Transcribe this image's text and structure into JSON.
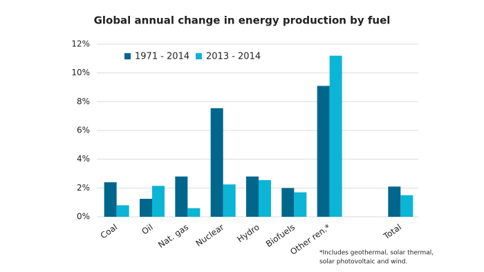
{
  "chart_data": {
    "type": "bar",
    "title": "Global annual change in energy production by fuel",
    "categories": [
      "Coal",
      "Oil",
      "Nat. gas",
      "Nuclear",
      "Hydro",
      "Biofuels",
      "Other ren.*",
      null,
      "Total"
    ],
    "series": [
      {
        "name": "1971 - 2014",
        "color": "#00668c",
        "values": [
          2.4,
          1.25,
          2.8,
          7.55,
          2.8,
          2.0,
          9.1,
          null,
          2.1
        ]
      },
      {
        "name": "2013 - 2014",
        "color": "#0cb5d6",
        "values": [
          0.8,
          2.15,
          0.6,
          2.25,
          2.55,
          1.7,
          11.2,
          null,
          1.5
        ]
      }
    ],
    "ylim": [
      0,
      12
    ],
    "yticks": [
      {
        "value": 0,
        "label": "0%"
      },
      {
        "value": 2,
        "label": "2%"
      },
      {
        "value": 4,
        "label": "4%"
      },
      {
        "value": 6,
        "label": "6%"
      },
      {
        "value": 8,
        "label": "8%"
      },
      {
        "value": 10,
        "label": "10%"
      },
      {
        "value": 12,
        "label": "12%"
      }
    ],
    "grid": true,
    "legend": "top-left",
    "footnote": [
      "*Includes geothermal, solar thermal,",
      "solar photovoltaic and wind."
    ]
  }
}
